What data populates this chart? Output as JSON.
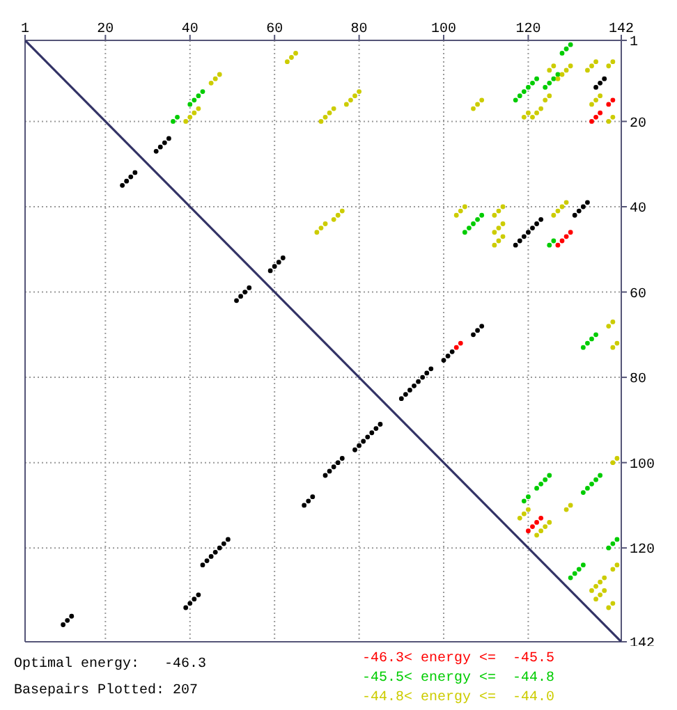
{
  "chart_data": {
    "type": "scatter",
    "xlim": [
      1,
      142
    ],
    "ylim": [
      142,
      1
    ],
    "xticks": [
      1,
      20,
      40,
      60,
      80,
      100,
      120,
      142
    ],
    "yticks": [
      1,
      20,
      40,
      60,
      80,
      100,
      120,
      142
    ],
    "grid": true,
    "marker": "circle",
    "legend": "bottom",
    "annotations": [
      "Optimal energy:   -46.3",
      "Basepairs Plotted: 207"
    ],
    "series": [
      {
        "type": "line",
        "marker": "none",
        "color": "#333366",
        "x": [
          1,
          142
        ],
        "values": [
          1,
          142
        ]
      },
      {
        "color": "#000000",
        "x": [
          136,
          137,
          138,
          117,
          118,
          119,
          120,
          121,
          122,
          123,
          131,
          132,
          133,
          134,
          107,
          108,
          109,
          100,
          101,
          102,
          90,
          91,
          92,
          93,
          94,
          95,
          96,
          97,
          79,
          80,
          81,
          82,
          83,
          84,
          85,
          72,
          73,
          74,
          75,
          76,
          67,
          68,
          69,
          43,
          44,
          45,
          46,
          47,
          48,
          49,
          39,
          40,
          41,
          42,
          10,
          11,
          12,
          24,
          25,
          26,
          27,
          32,
          33,
          34,
          35,
          59,
          60,
          61,
          62,
          51,
          52,
          53,
          54
        ],
        "values": [
          12,
          11,
          10,
          49,
          48,
          47,
          46,
          45,
          44,
          43,
          42,
          41,
          40,
          39,
          70,
          69,
          68,
          76,
          75,
          74,
          85,
          84,
          83,
          82,
          81,
          80,
          79,
          78,
          97,
          96,
          95,
          94,
          93,
          92,
          91,
          103,
          102,
          101,
          100,
          99,
          110,
          109,
          108,
          124,
          123,
          122,
          121,
          120,
          119,
          118,
          134,
          133,
          132,
          131,
          138,
          137,
          136,
          35,
          34,
          33,
          32,
          27,
          26,
          25,
          24,
          55,
          54,
          53,
          52,
          62,
          61,
          60,
          59
        ]
      },
      {
        "name": "-46.3< energy <=  -45.5",
        "color": "#ff0000",
        "x": [
          135,
          136,
          137,
          139,
          140,
          127,
          128,
          129,
          130,
          103,
          104,
          120,
          121,
          122,
          123
        ],
        "values": [
          20,
          19,
          18,
          16,
          15,
          49,
          48,
          47,
          46,
          73,
          72,
          116,
          115,
          114,
          113
        ]
      },
      {
        "name": "-45.5< energy <=  -44.8",
        "color": "#00cc00",
        "x": [
          36,
          37,
          40,
          41,
          42,
          43,
          117,
          118,
          119,
          120,
          121,
          122,
          124,
          125,
          126,
          127,
          128,
          129,
          130,
          105,
          106,
          107,
          108,
          109,
          125,
          126,
          133,
          134,
          135,
          136,
          119,
          120,
          122,
          123,
          124,
          125,
          133,
          134,
          135,
          136,
          137,
          130,
          131,
          132,
          133,
          139,
          140,
          141
        ],
        "values": [
          20,
          19,
          16,
          15,
          14,
          13,
          15,
          14,
          13,
          12,
          11,
          10,
          12,
          11,
          10,
          9,
          4,
          3,
          2,
          46,
          45,
          44,
          43,
          42,
          49,
          48,
          73,
          72,
          71,
          70,
          109,
          108,
          106,
          105,
          104,
          103,
          107,
          106,
          105,
          104,
          103,
          127,
          126,
          125,
          124,
          120,
          119,
          118
        ]
      },
      {
        "name": "-44.8< energy <=  -44.0",
        "color": "#cccc00",
        "x": [
          39,
          40,
          41,
          42,
          45,
          46,
          47,
          63,
          64,
          65,
          71,
          72,
          73,
          74,
          77,
          78,
          79,
          80,
          70,
          71,
          72,
          74,
          75,
          76,
          107,
          108,
          109,
          119,
          120,
          121,
          122,
          123,
          124,
          125,
          125,
          126,
          127,
          128,
          129,
          130,
          134,
          135,
          136,
          139,
          140,
          135,
          136,
          137,
          139,
          140,
          103,
          104,
          105,
          112,
          113,
          114,
          112,
          113,
          114,
          112,
          113,
          114,
          126,
          127,
          128,
          129,
          139,
          140,
          140,
          141,
          140,
          141,
          129,
          130,
          118,
          119,
          120,
          122,
          123,
          124,
          125,
          140,
          141,
          135,
          136,
          137,
          138,
          136,
          137,
          138,
          139,
          140
        ],
        "values": [
          20,
          19,
          18,
          17,
          11,
          10,
          9,
          6,
          5,
          4,
          20,
          19,
          18,
          17,
          16,
          15,
          14,
          13,
          46,
          45,
          44,
          43,
          42,
          41,
          17,
          16,
          15,
          19,
          18,
          19,
          18,
          17,
          15,
          14,
          8,
          7,
          10,
          9,
          8,
          7,
          8,
          7,
          6,
          7,
          6,
          16,
          15,
          14,
          20,
          19,
          42,
          41,
          40,
          42,
          41,
          40,
          46,
          45,
          44,
          49,
          48,
          47,
          42,
          41,
          40,
          39,
          68,
          67,
          73,
          72,
          100,
          99,
          111,
          110,
          113,
          112,
          111,
          117,
          116,
          115,
          114,
          125,
          124,
          130,
          129,
          128,
          127,
          132,
          131,
          130,
          134,
          133
        ]
      }
    ]
  }
}
